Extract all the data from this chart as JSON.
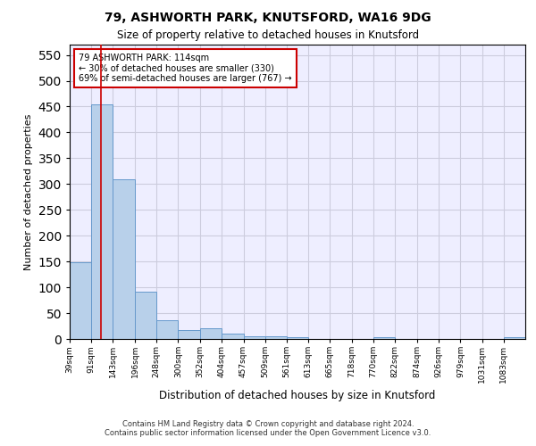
{
  "title1": "79, ASHWORTH PARK, KNUTSFORD, WA16 9DG",
  "title2": "Size of property relative to detached houses in Knutsford",
  "xlabel": "Distribution of detached houses by size in Knutsford",
  "ylabel": "Number of detached properties",
  "annotation_line1": "79 ASHWORTH PARK: 114sqm",
  "annotation_line2": "← 30% of detached houses are smaller (330)",
  "annotation_line3": "69% of semi-detached houses are larger (767) →",
  "footer1": "Contains HM Land Registry data © Crown copyright and database right 2024.",
  "footer2": "Contains public sector information licensed under the Open Government Licence v3.0.",
  "bar_color": "#b8d0ea",
  "bar_edge_color": "#6699cc",
  "red_line_x": 114,
  "annotation_box_color": "#ffffff",
  "annotation_box_edge": "#cc0000",
  "categories": [
    "39sqm",
    "91sqm",
    "143sqm",
    "196sqm",
    "248sqm",
    "300sqm",
    "352sqm",
    "404sqm",
    "457sqm",
    "509sqm",
    "561sqm",
    "613sqm",
    "665sqm",
    "718sqm",
    "770sqm",
    "822sqm",
    "874sqm",
    "926sqm",
    "979sqm",
    "1031sqm",
    "1083sqm"
  ],
  "bin_edges": [
    39,
    91,
    143,
    196,
    248,
    300,
    352,
    404,
    457,
    509,
    561,
    613,
    665,
    718,
    770,
    822,
    874,
    926,
    979,
    1031,
    1083,
    1135
  ],
  "values": [
    148,
    455,
    310,
    91,
    37,
    18,
    20,
    11,
    5,
    6,
    3,
    0,
    0,
    0,
    4,
    0,
    0,
    0,
    0,
    0,
    3
  ],
  "ylim": [
    0,
    570
  ],
  "yticks": [
    0,
    50,
    100,
    150,
    200,
    250,
    300,
    350,
    400,
    450,
    500,
    550
  ],
  "bg_color": "#eeeeff",
  "grid_color": "#ccccdd"
}
